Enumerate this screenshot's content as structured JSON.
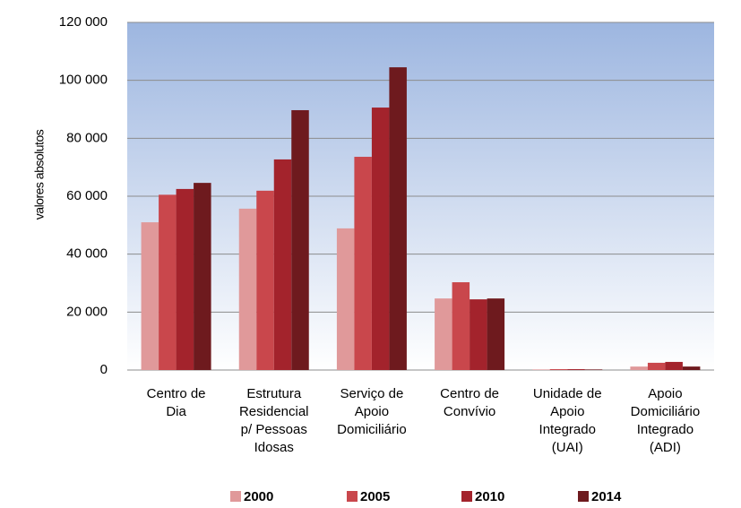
{
  "chart_data": {
    "type": "bar",
    "y_label": "valores absolutos",
    "categories": [
      "Centro de\nDia",
      "Estrutura\nResidencial\np/ Pessoas\nIdosas",
      "Serviço de\nApoio\nDomiciliário",
      "Centro de\nConvívio",
      "Unidade de\nApoio\nIntegrado\n(UAI)",
      "Apoio\nDomiciliário\nIntegrado\n(ADI)"
    ],
    "series": [
      {
        "name": "2000",
        "color": "#e0999a",
        "values": [
          51000,
          55700,
          48900,
          24700,
          200,
          1200
        ]
      },
      {
        "name": "2005",
        "color": "#c9474c",
        "values": [
          60500,
          61900,
          73600,
          30300,
          300,
          2500
        ]
      },
      {
        "name": "2010",
        "color": "#a3232c",
        "values": [
          62500,
          72700,
          90600,
          24400,
          300,
          2800
        ]
      },
      {
        "name": "2014",
        "color": "#6e1a1e",
        "values": [
          64600,
          89700,
          104500,
          24700,
          200,
          1200
        ]
      }
    ],
    "ylim": [
      0,
      120000
    ],
    "yticks": [
      {
        "value": 0,
        "label": "0"
      },
      {
        "value": 20000,
        "label": "20 000"
      },
      {
        "value": 40000,
        "label": "40 000"
      },
      {
        "value": 60000,
        "label": "60 000"
      },
      {
        "value": 80000,
        "label": "80 000"
      },
      {
        "value": 100000,
        "label": "100 000"
      },
      {
        "value": 120000,
        "label": "120 000"
      }
    ],
    "grid": true,
    "legend": "bottom"
  }
}
